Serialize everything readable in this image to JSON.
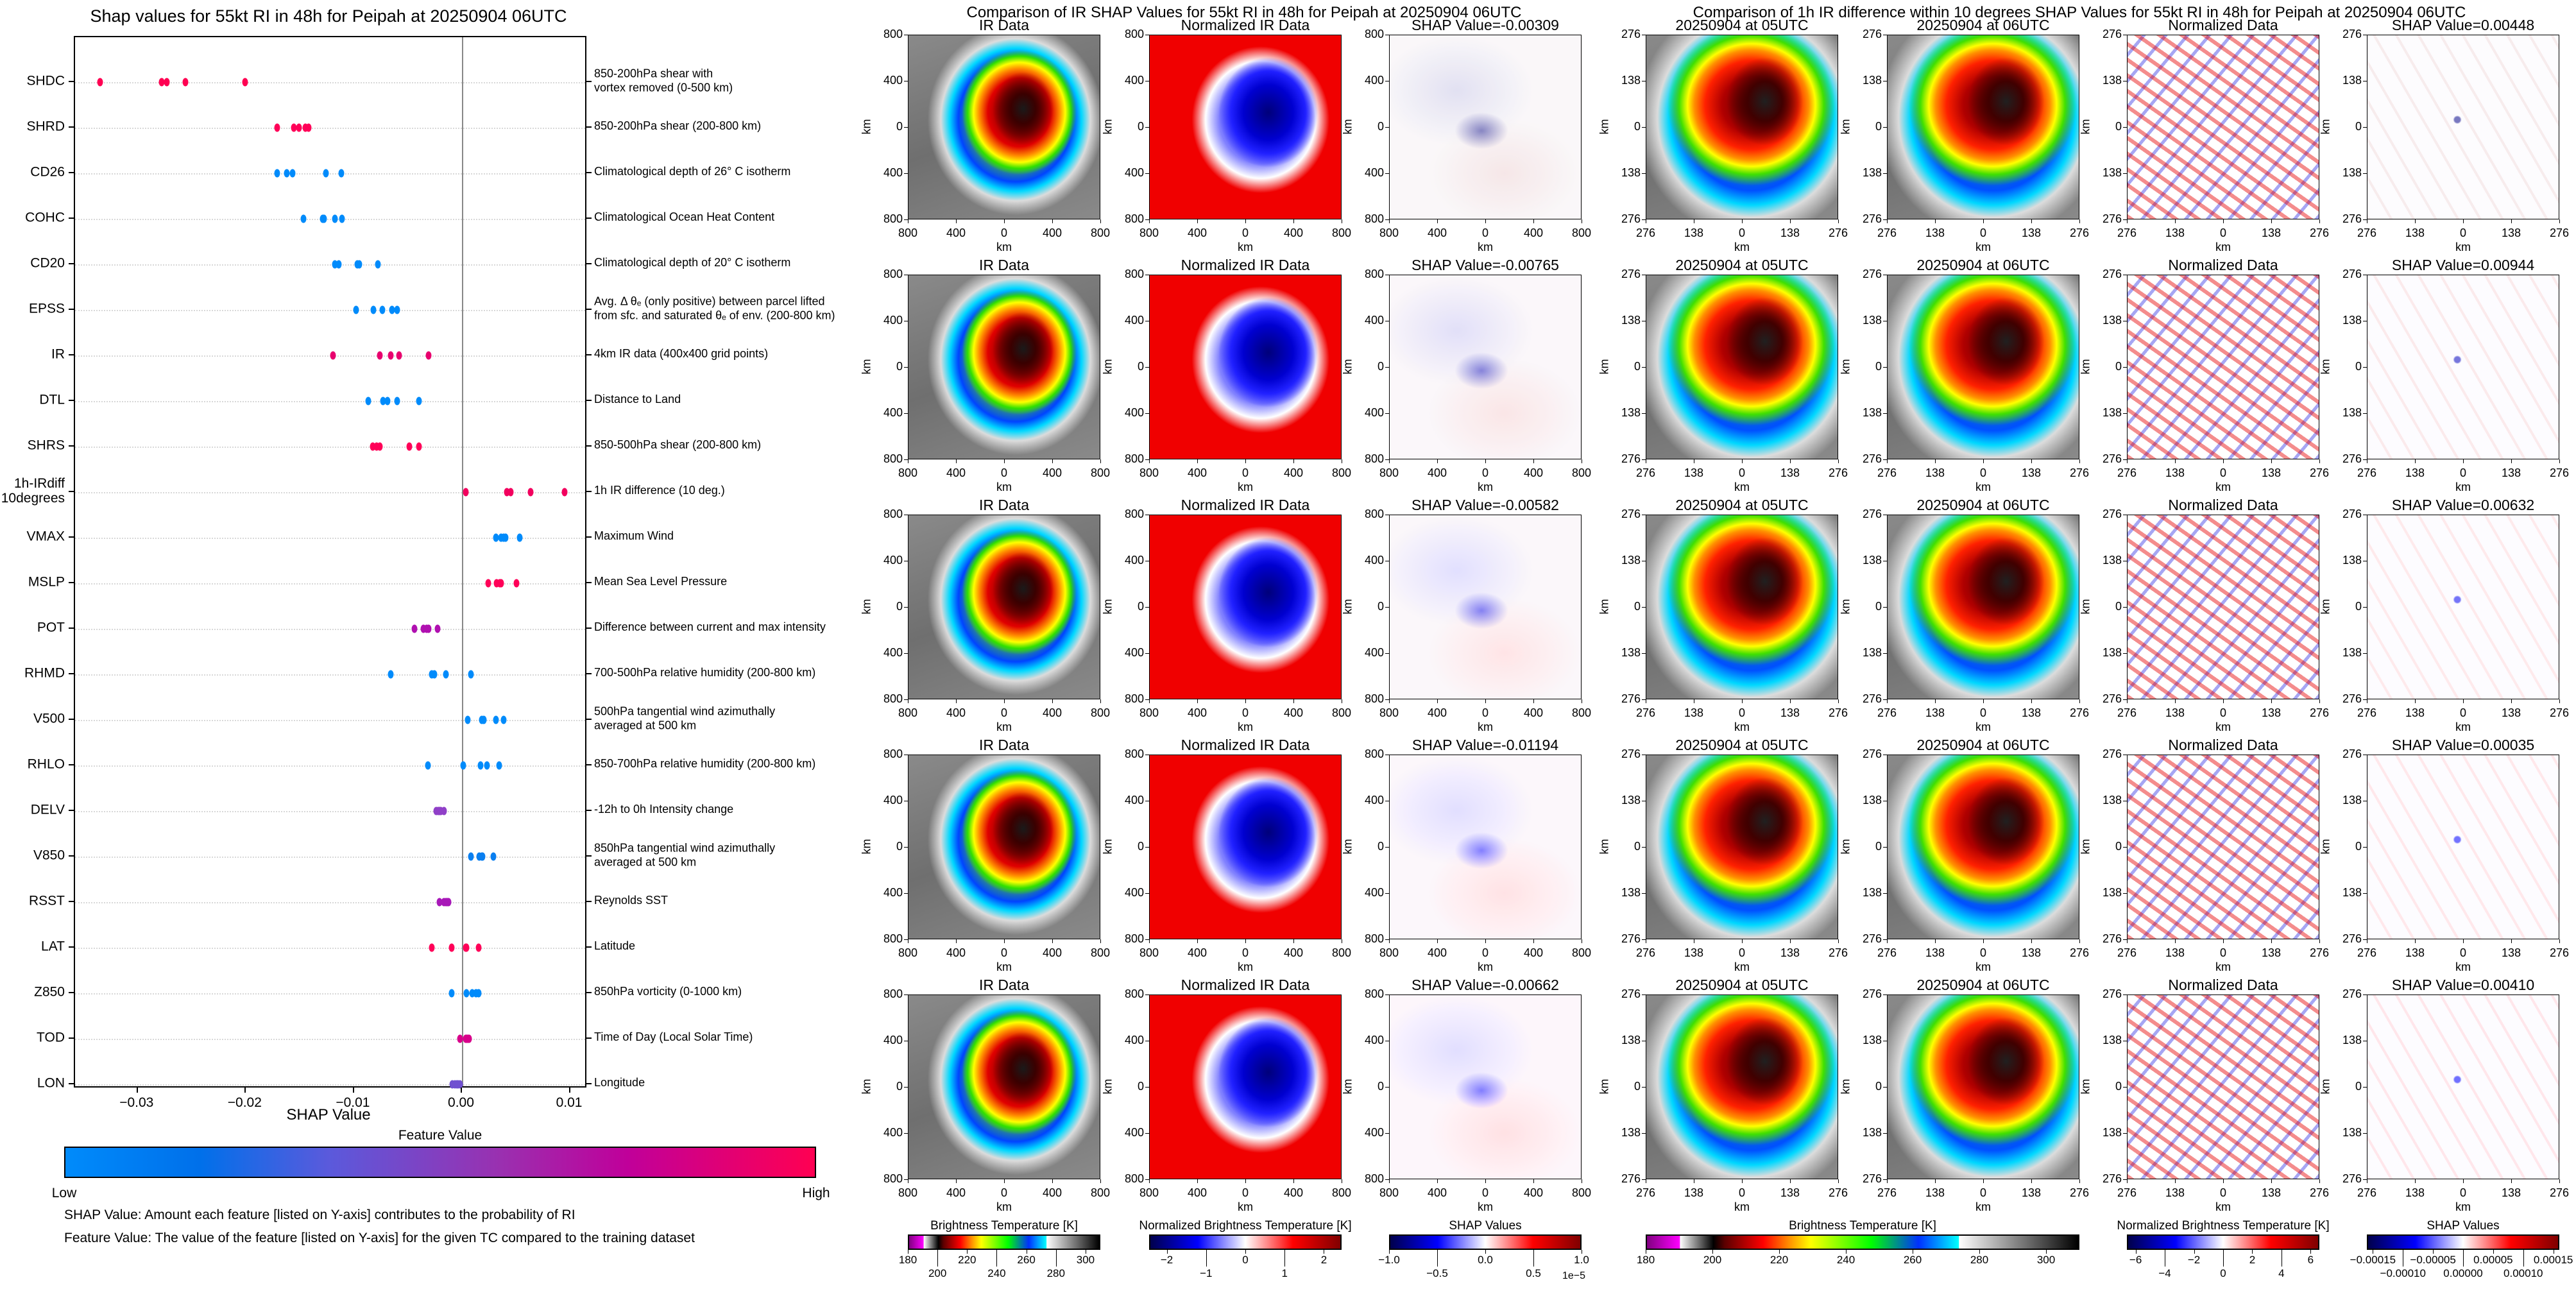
{
  "left_chart": {
    "title": "Shap values for 55kt RI in 48h for Peipah at 20250904 06UTC",
    "colorbar": {
      "title": "Feature Value",
      "low": "Low",
      "high": "High",
      "colors": [
        "#008bfb",
        "#0070ea",
        "#5a5adc",
        "#9a30b0",
        "#c0009a",
        "#ff0052"
      ]
    },
    "notes": [
      "SHAP Value: Amount each feature [listed on Y-axis] contributes to the probability of RI",
      "Feature Value: The value of the feature [listed on Y-axis] for the given TC compared to the training dataset"
    ]
  },
  "chart_data": {
    "type": "scatter",
    "title": "Shap values for 55kt RI in 48h for Peipah at 20250904 06UTC",
    "xlabel": "SHAP Value",
    "xlim": [
      -0.0358,
      0.0116
    ],
    "xticks": [
      -0.03,
      -0.02,
      -0.01,
      0.0,
      0.01
    ],
    "xtick_labels": [
      "−0.03",
      "−0.02",
      "−0.01",
      "0.00",
      "0.01"
    ],
    "zero_line": true,
    "features": [
      {
        "name": "SHDC",
        "description": "850-200hPa shear with\nvortex removed (0-500 km)",
        "color": "#ff0052",
        "values": [
          -0.0335,
          -0.0278,
          -0.0273,
          -0.0256,
          -0.0201
        ]
      },
      {
        "name": "SHRD",
        "description": "850-200hPa shear (200-800 km)",
        "color": "#ff0058",
        "values": [
          -0.0171,
          -0.0156,
          -0.0151,
          -0.0145,
          -0.0142
        ]
      },
      {
        "name": "CD26",
        "description": "Climatological depth of 26° C isotherm",
        "color": "#008bfb",
        "values": [
          -0.0171,
          -0.0162,
          -0.0157,
          -0.0126,
          -0.0112
        ]
      },
      {
        "name": "COHC",
        "description": "Climatological Ocean Heat Content",
        "color": "#008bfb",
        "values": [
          -0.0147,
          -0.0129,
          -0.0128,
          -0.0118,
          -0.0111
        ]
      },
      {
        "name": "CD20",
        "description": "Climatological depth of 20° C isotherm",
        "color": "#008bfb",
        "values": [
          -0.0118,
          -0.0114,
          -0.0097,
          -0.0095,
          -0.0078
        ]
      },
      {
        "name": "EPSS",
        "description": "Avg. Δ θₑ (only positive) between parcel lifted\nfrom sfc. and saturated θₑ of env. (200-800 km)",
        "color": "#008bfb",
        "values": [
          -0.0098,
          -0.0082,
          -0.0074,
          -0.0065,
          -0.006
        ]
      },
      {
        "name": "IR",
        "description": "4km IR data (400x400 grid points)",
        "color": "#e8006e",
        "values": [
          -0.01194,
          -0.00765,
          -0.00662,
          -0.00582,
          -0.00309
        ]
      },
      {
        "name": "DTL",
        "description": "Distance to Land",
        "color": "#008bfb",
        "values": [
          -0.0087,
          -0.0073,
          -0.0069,
          -0.006,
          -0.004
        ]
      },
      {
        "name": "SHRS",
        "description": "850-500hPa shear (200-800 km)",
        "color": "#ff0058",
        "values": [
          -0.0083,
          -0.0079,
          -0.0076,
          -0.0049,
          -0.004
        ]
      },
      {
        "name": "1h-IRdiff\n10degrees",
        "description": "1h IR difference (10 deg.)",
        "color": "#f2005e",
        "values": [
          0.00035,
          0.0041,
          0.00448,
          0.00632,
          0.00944
        ]
      },
      {
        "name": "VMAX",
        "description": "Maximum Wind",
        "color": "#008bfb",
        "values": [
          0.0031,
          0.0036,
          0.0038,
          0.004,
          0.0053
        ]
      },
      {
        "name": "MSLP",
        "description": "Mean Sea Level Pressure",
        "color": "#ff0058",
        "values": [
          0.0024,
          0.0032,
          0.0035,
          0.0036,
          0.005
        ]
      },
      {
        "name": "POT",
        "description": "Difference between current and max intensity",
        "color": "#b010b0",
        "values": [
          -0.0044,
          -0.0036,
          -0.0033,
          -0.0031,
          -0.0023
        ]
      },
      {
        "name": "RHMD",
        "description": "700-500hPa relative humidity (200-800 km)",
        "color": "#008bfb",
        "values": [
          -0.0066,
          -0.0028,
          -0.0026,
          -0.0015,
          0.0008
        ]
      },
      {
        "name": "V500",
        "description": "500hPa tangential wind azimuthally\naveraged at 500 km",
        "color": "#008bfb",
        "values": [
          0.0005,
          0.0018,
          0.002,
          0.0031,
          0.0038
        ]
      },
      {
        "name": "RHLO",
        "description": "850-700hPa relative humidity (200-800 km)",
        "color": "#008bfb",
        "values": [
          -0.0032,
          0.0001,
          0.0017,
          0.0023,
          0.0034
        ]
      },
      {
        "name": "DELV",
        "description": "-12h to 0h Intensity change",
        "color": "#9040c8",
        "values": [
          -0.0024,
          -0.0022,
          -0.0021,
          -0.002,
          -0.0017
        ]
      },
      {
        "name": "V850",
        "description": "850hPa tangential wind azimuthally\naveraged at 500 km",
        "color": "#0a7ff0",
        "values": [
          0.0008,
          0.0016,
          0.0018,
          0.0019,
          0.0029
        ]
      },
      {
        "name": "RSST",
        "description": "Reynolds SST",
        "color": "#a818b8",
        "values": [
          -0.0021,
          -0.0017,
          -0.0015,
          -0.0014,
          -0.0013
        ]
      },
      {
        "name": "LAT",
        "description": "Latitude",
        "color": "#ff0058",
        "values": [
          -0.0028,
          -0.001,
          0.0003,
          0.0004,
          0.0015
        ]
      },
      {
        "name": "Z850",
        "description": "850hPa vorticity (0-1000 km)",
        "color": "#008bfb",
        "values": [
          -0.001,
          0.0004,
          0.0009,
          0.0013,
          0.0015
        ]
      },
      {
        "name": "TOD",
        "description": "Time of Day (Local Solar Time)",
        "color": "#d8008a",
        "values": [
          -0.0002,
          0.0003,
          0.0004,
          0.0005,
          0.0006
        ]
      },
      {
        "name": "LON",
        "description": "Longitude",
        "color": "#7050d0",
        "values": [
          -0.0009,
          -0.0007,
          -0.0005,
          -0.0004,
          -0.0002
        ]
      }
    ]
  },
  "ir_comparison": {
    "title": "Comparison of IR SHAP Values for 55kt RI in 48h for Peipah at 20250904 06UTC",
    "axis_label": "km",
    "ticks": [
      "800",
      "400",
      "0",
      "400",
      "800"
    ],
    "panel_kinds": [
      "ir",
      "norm",
      "shap"
    ],
    "rows": [
      {
        "titles": [
          "IR Data",
          "Normalized IR Data",
          "SHAP Value=-0.00309"
        ]
      },
      {
        "titles": [
          "IR Data",
          "Normalized IR Data",
          "SHAP Value=-0.00765"
        ]
      },
      {
        "titles": [
          "IR Data",
          "Normalized IR Data",
          "SHAP Value=-0.00582"
        ]
      },
      {
        "titles": [
          "IR Data",
          "Normalized IR Data",
          "SHAP Value=-0.01194"
        ]
      },
      {
        "titles": [
          "IR Data",
          "Normalized IR Data",
          "SHAP Value=-0.00662"
        ]
      }
    ],
    "colorbars": [
      {
        "title": "Brightness Temperature [K]",
        "ticks": [
          "180",
          "200",
          "220",
          "240",
          "260",
          "280",
          "300"
        ],
        "range": [
          180,
          310
        ],
        "tick_values": [
          180,
          200,
          220,
          240,
          260,
          280,
          300
        ],
        "colormap": "brightness-temperature"
      },
      {
        "title": "Normalized Brightness Temperature [K]",
        "ticks": [
          "−2",
          "−1",
          "0",
          "1",
          "2"
        ],
        "range": [
          -2.45,
          2.45
        ],
        "tick_values": [
          -2,
          -1,
          0,
          1,
          2
        ],
        "colormap": "seismic"
      },
      {
        "title": "SHAP Values",
        "ticks": [
          "−1.0",
          "−0.5",
          "0.0",
          "0.5",
          "1.0"
        ],
        "range": [
          -1,
          1
        ],
        "tick_values": [
          -1,
          -0.5,
          0,
          0.5,
          1
        ],
        "offset": "1e−5",
        "colormap": "seismic"
      }
    ]
  },
  "irdiff_comparison": {
    "title": "Comparison of 1h IR difference within 10 degrees SHAP Values for 55kt RI in 48h for Peipah at 20250904 06UTC",
    "axis_label": "km",
    "ticks": [
      "276",
      "138",
      "0",
      "138",
      "276"
    ],
    "panel_kinds": [
      "irz",
      "irz",
      "dnorm",
      "dshap"
    ],
    "rows": [
      {
        "titles": [
          "20250904 at 05UTC",
          "20250904 at 06UTC",
          "Normalized Data",
          "SHAP Value=0.00448"
        ]
      },
      {
        "titles": [
          "20250904 at 05UTC",
          "20250904 at 06UTC",
          "Normalized Data",
          "SHAP Value=0.00944"
        ]
      },
      {
        "titles": [
          "20250904 at 05UTC",
          "20250904 at 06UTC",
          "Normalized Data",
          "SHAP Value=0.00632"
        ]
      },
      {
        "titles": [
          "20250904 at 05UTC",
          "20250904 at 06UTC",
          "Normalized Data",
          "SHAP Value=0.00035"
        ]
      },
      {
        "titles": [
          "20250904 at 05UTC",
          "20250904 at 06UTC",
          "Normalized Data",
          "SHAP Value=0.00410"
        ]
      }
    ],
    "colorbars": [
      {
        "title": "Brightness Temperature [K]",
        "ticks": [
          "180",
          "200",
          "220",
          "240",
          "260",
          "280",
          "300"
        ],
        "range": [
          180,
          310
        ],
        "tick_values": [
          180,
          200,
          220,
          240,
          260,
          280,
          300
        ],
        "colormap": "brightness-temperature"
      },
      {
        "title": "Normalized Brightness Temperature [K]",
        "ticks": [
          "−6",
          "−4",
          "−2",
          "0",
          "2",
          "4",
          "6"
        ],
        "range": [
          -6.6,
          6.6
        ],
        "tick_values": [
          -6,
          -4,
          -2,
          0,
          2,
          4,
          6
        ],
        "colormap": "seismic"
      },
      {
        "title": "SHAP Values",
        "ticks": [
          "−0.00015",
          "−0.00010",
          "−0.00005",
          "0.00000",
          "0.00005",
          "0.00010",
          "0.00015"
        ],
        "range": [
          -0.00016,
          0.00016
        ],
        "tick_values": [
          -0.00015,
          -0.0001,
          -5e-05,
          0,
          5e-05,
          0.0001,
          0.00015
        ],
        "colormap": "seismic"
      }
    ]
  },
  "colormaps": {
    "brightness-temperature": "linear-gradient(90deg,#800080 0%,#ff00ff 7.6%,#ffffff 7.7%,#000 15.4%,#5a0000 18%,#ff0000 27%,#ff9000 33%,#ffff00 38%,#00ff00 52%,#0030ff 63%,#00ffff 72.3%,#ffffff 72.4%,#000 100%)",
    "seismic": "linear-gradient(90deg,#00004c 0%,#0000ff 25%,#ffffff 50%,#ff0000 75%,#800000 100%)"
  }
}
